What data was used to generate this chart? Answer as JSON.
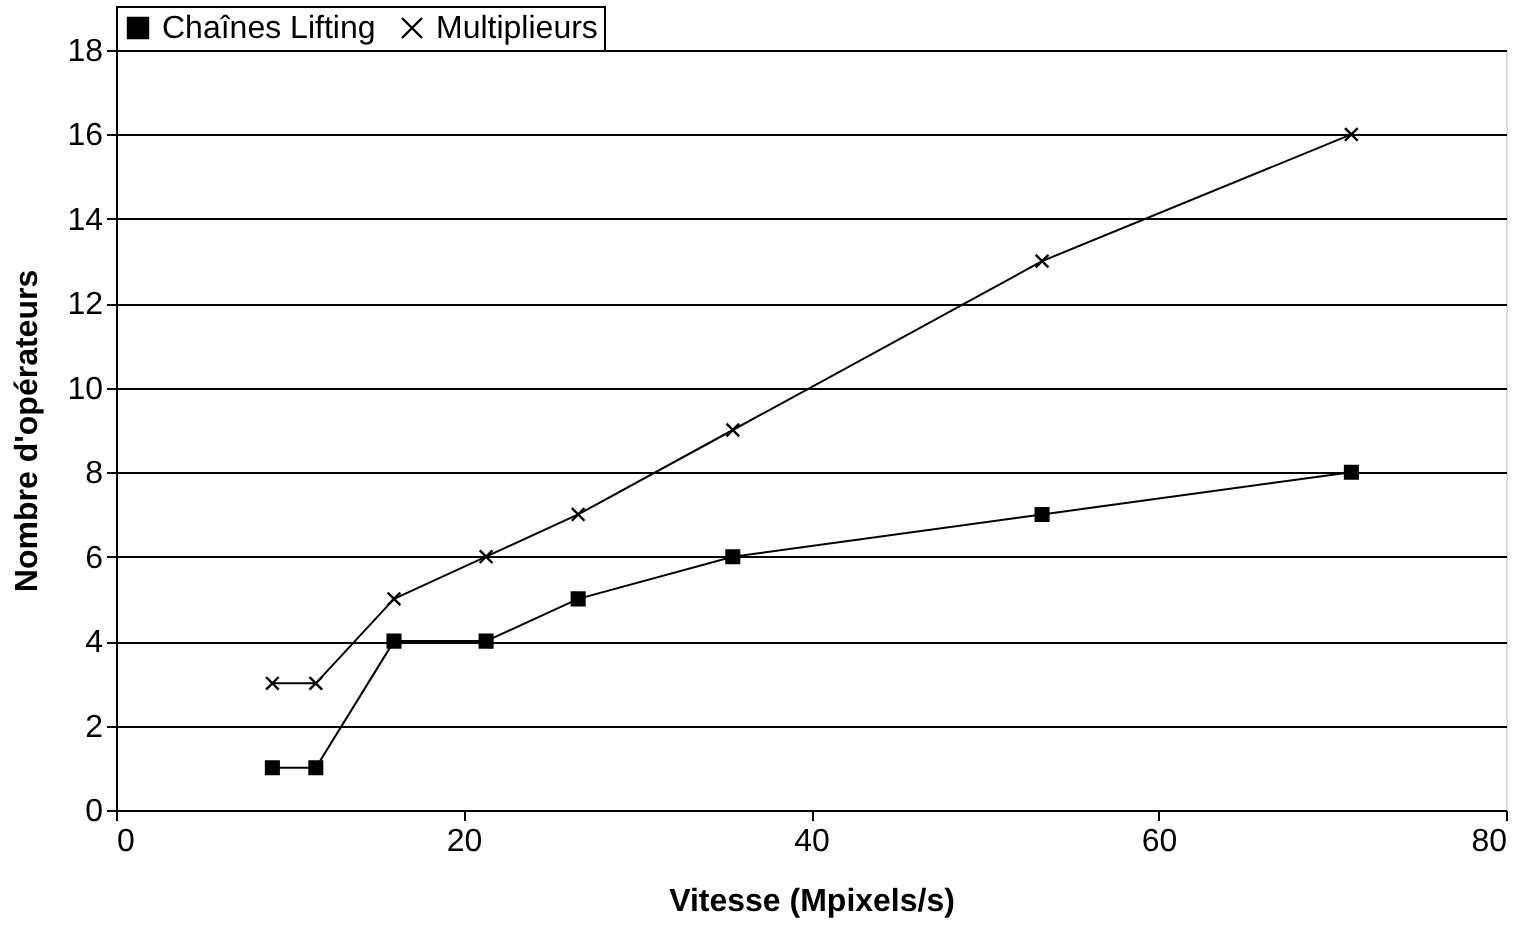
{
  "chart_data": {
    "type": "line",
    "xlabel": "Vitesse (Mpixels/s)",
    "ylabel": "Nombre d'opérateurs",
    "x": [
      9.0,
      11.5,
      16.0,
      21.3,
      26.6,
      35.5,
      53.3,
      71.1
    ],
    "series": [
      {
        "name": "Chaînes Lifting",
        "color": "#000000",
        "marker": "square",
        "values": [
          1,
          1,
          4,
          4,
          5,
          6,
          7,
          8
        ]
      },
      {
        "name": "Multiplieurs",
        "color": "#000000",
        "marker": "cross",
        "values": [
          3,
          3,
          5,
          6,
          7,
          9,
          13,
          16
        ]
      }
    ],
    "xlim": [
      0,
      80
    ],
    "xticks": [
      0,
      20,
      40,
      60,
      80
    ],
    "ylim": [
      0,
      18
    ],
    "yticks": [
      0,
      2,
      4,
      6,
      8,
      10,
      12,
      14,
      16,
      18
    ],
    "grid": "y",
    "legend": "top",
    "line_style": "solid"
  }
}
